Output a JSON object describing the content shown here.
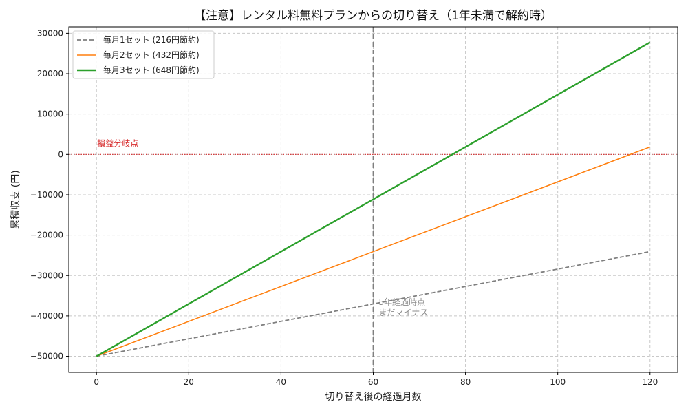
{
  "chart_data": {
    "type": "line",
    "title": "【注意】レンタル料無料プランからの切り替え（1年未満で解約時）",
    "xlabel": "切り替え後の経過月数",
    "ylabel": "累積収支 (円)",
    "xlim": [
      -6,
      126
    ],
    "ylim": [
      -54000,
      31600
    ],
    "xticks": [
      0,
      20,
      40,
      60,
      80,
      100,
      120
    ],
    "yticks": [
      -50000,
      -40000,
      -30000,
      -20000,
      -10000,
      0,
      10000,
      20000,
      30000
    ],
    "ytick_labels": [
      "−50000",
      "−40000",
      "−30000",
      "−20000",
      "−10000",
      "0",
      "10000",
      "20000",
      "30000"
    ],
    "grid": true,
    "legend_position": "top-left",
    "series": [
      {
        "name": "毎月1セット (216円節約)",
        "color": "#7f7f7f",
        "dash": true,
        "width": 1.8,
        "x": [
          0,
          120
        ],
        "y": [
          -50000,
          -24080
        ]
      },
      {
        "name": "毎月2セット (432円節約)",
        "color": "#ff7f0e",
        "dash": false,
        "width": 1.6,
        "x": [
          0,
          120
        ],
        "y": [
          -50000,
          1840
        ]
      },
      {
        "name": "毎月3セット (648円節約)",
        "color": "#2ca02c",
        "dash": false,
        "width": 2.4,
        "x": [
          0,
          120
        ],
        "y": [
          -50000,
          27760
        ]
      }
    ],
    "reference_lines": [
      {
        "orientation": "horizontal",
        "value": 0,
        "color": "#d62728",
        "label": "損益分岐点"
      },
      {
        "orientation": "vertical",
        "value": 60,
        "color": "#7f7f7f",
        "label_lines": [
          "5年経過時点",
          "まだマイナス"
        ]
      }
    ]
  }
}
